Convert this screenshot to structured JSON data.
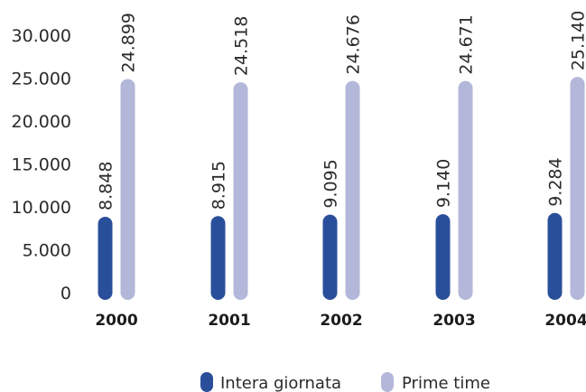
{
  "chart_data": {
    "type": "bar",
    "categories": [
      "2000",
      "2001",
      "2002",
      "2003",
      "2004"
    ],
    "series": [
      {
        "name": "Intera giornata",
        "color": "#2a4f9a",
        "values": [
          8848,
          8915,
          9095,
          9140,
          9284
        ],
        "labels": [
          "8.848",
          "8.915",
          "9.095",
          "9.140",
          "9.284"
        ]
      },
      {
        "name": "Prime time",
        "color": "#b3b7d9",
        "values": [
          24899,
          24518,
          24676,
          24671,
          25140
        ],
        "labels": [
          "24.899",
          "24.518",
          "24.676",
          "24.671",
          "25.140"
        ]
      }
    ],
    "y_ticks": [
      0,
      5000,
      10000,
      15000,
      20000,
      25000,
      30000
    ],
    "y_tick_labels": [
      "0",
      "5.000",
      "10.000",
      "15.000",
      "20.000",
      "25.000",
      "30.000"
    ],
    "ylim": [
      0,
      30000
    ],
    "grid": false,
    "legend_position": "bottom",
    "title": "",
    "xlabel": "",
    "ylabel": ""
  }
}
